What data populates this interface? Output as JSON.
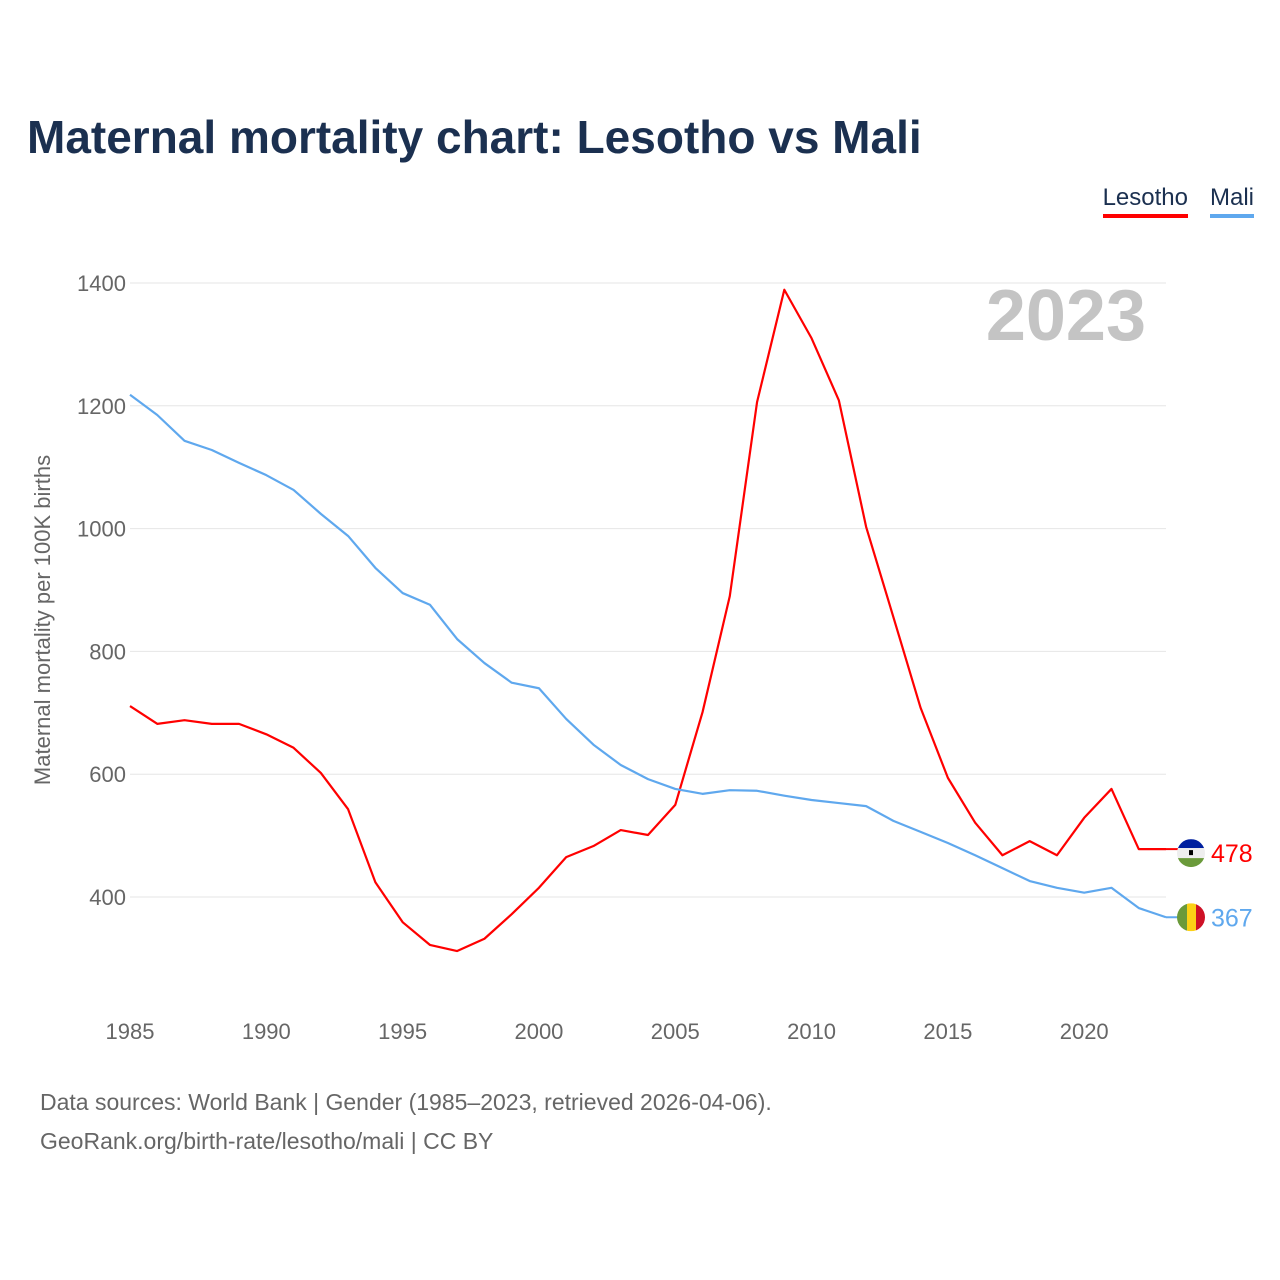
{
  "chart_data": {
    "type": "line",
    "title": "Maternal mortality chart: Lesotho vs Mali",
    "ylabel": "Maternal mortality per 100K births",
    "xlabel": "",
    "year_label": "2023",
    "x": [
      1985,
      1986,
      1987,
      1988,
      1989,
      1990,
      1991,
      1992,
      1993,
      1994,
      1995,
      1996,
      1997,
      1998,
      1999,
      2000,
      2001,
      2002,
      2003,
      2004,
      2005,
      2006,
      2007,
      2008,
      2009,
      2010,
      2011,
      2012,
      2013,
      2014,
      2015,
      2016,
      2017,
      2018,
      2019,
      2020,
      2021,
      2022,
      2023
    ],
    "xticks": [
      1985,
      1990,
      1995,
      2000,
      2005,
      2010,
      2015,
      2020
    ],
    "yticks": [
      400,
      600,
      800,
      1000,
      1200,
      1400
    ],
    "xlim": [
      1985,
      2023
    ],
    "ylim": [
      236,
      1400
    ],
    "grid": true,
    "legend": "top-right",
    "series": [
      {
        "name": "Lesotho",
        "color": "#ff0000",
        "end_label": "478",
        "values": [
          711,
          682,
          688,
          682,
          682,
          665,
          643,
          602,
          543,
          424,
          359,
          322,
          312,
          332,
          372,
          415,
          465,
          483,
          509,
          501,
          550,
          701,
          890,
          1206,
          1389,
          1310,
          1209,
          1003,
          856,
          708,
          594,
          521,
          468,
          491,
          468,
          529,
          576,
          478,
          478
        ]
      },
      {
        "name": "Mali",
        "color": "#5fa8ee",
        "end_label": "367",
        "values": [
          1218,
          1185,
          1143,
          1128,
          1107,
          1087,
          1063,
          1024,
          988,
          936,
          895,
          876,
          820,
          781,
          749,
          740,
          690,
          648,
          615,
          592,
          576,
          568,
          574,
          573,
          565,
          558,
          553,
          548,
          524,
          506,
          488,
          468,
          447,
          426,
          415,
          407,
          415,
          382,
          367
        ]
      }
    ]
  },
  "footer": {
    "line1": "Data sources: World Bank | Gender (1985–2023, retrieved 2026-04-06).",
    "line2": "GeoRank.org/birth-rate/lesotho/mali | CC BY"
  }
}
